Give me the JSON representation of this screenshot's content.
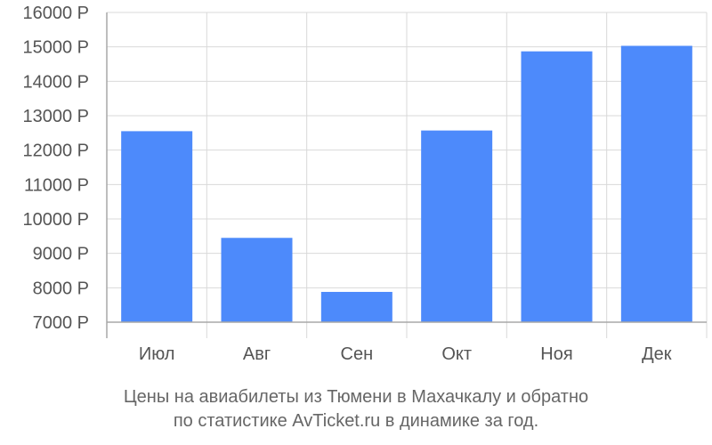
{
  "colors": {
    "bar": "#4d8afb",
    "grid": "#d9d9d9",
    "axis": "#a8a8a8",
    "text": "#555555"
  },
  "caption": {
    "line1": "Цены на авиабилеты из Тюмени в Махачкалу и обратно",
    "line2": "по статистике AvTicket.ru в динамике за год."
  },
  "chart_data": {
    "type": "bar",
    "categories": [
      "Июл",
      "Авг",
      "Сен",
      "Окт",
      "Ноя",
      "Дек"
    ],
    "values": [
      12550,
      9450,
      7880,
      12570,
      14870,
      15030
    ],
    "ylim": [
      7000,
      16000
    ],
    "y_ticks": [
      7000,
      8000,
      9000,
      10000,
      11000,
      12000,
      13000,
      14000,
      15000,
      16000
    ],
    "y_tick_suffix": " Р",
    "grid": true,
    "legend": "none"
  }
}
